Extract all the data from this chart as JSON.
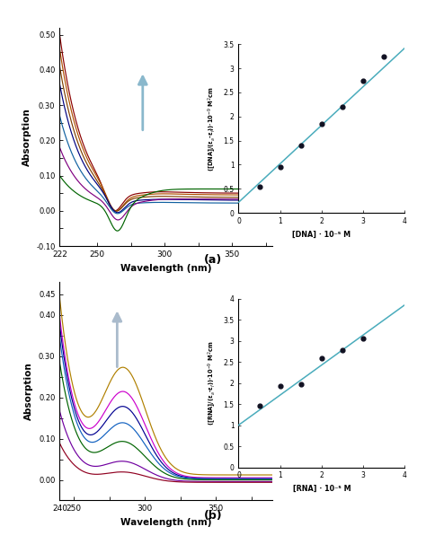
{
  "panel_a": {
    "xlim": [
      222,
      380
    ],
    "ylim": [
      -0.1,
      0.52
    ],
    "xlabel": "Wavelength (nm)",
    "ylabel": "Absorption",
    "curves": [
      {
        "color": "#8b0000",
        "peak_y": 0.5,
        "min_y": -0.005,
        "tail_y": 0.045,
        "min_x": 262
      },
      {
        "color": "#b05000",
        "peak_y": 0.46,
        "min_y": -0.005,
        "tail_y": 0.04,
        "min_x": 263
      },
      {
        "color": "#804000",
        "peak_y": 0.41,
        "min_y": -0.005,
        "tail_y": 0.033,
        "min_x": 263
      },
      {
        "color": "#000080",
        "peak_y": 0.36,
        "min_y": -0.008,
        "tail_y": 0.022,
        "min_x": 264
      },
      {
        "color": "#1060a0",
        "peak_y": 0.27,
        "min_y": -0.01,
        "tail_y": 0.012,
        "min_x": 264
      },
      {
        "color": "#800080",
        "peak_y": 0.18,
        "min_y": -0.03,
        "tail_y": 0.003,
        "min_x": 265
      },
      {
        "color": "#006400",
        "peak_y": 0.1,
        "min_y": -0.065,
        "tail_y": -0.003,
        "min_x": 265
      }
    ],
    "inset": {
      "xlim": [
        0,
        4
      ],
      "ylim": [
        0,
        3.5
      ],
      "xlabel": "[DNA] · 10⁻⁵ M",
      "ylabel_line1": "([DNA]/(εₐ - εₓ)) · 10⁻⁹ M²cm",
      "scatter_x": [
        0.5,
        1.0,
        1.5,
        2.0,
        2.5,
        3.0,
        3.5
      ],
      "scatter_y": [
        0.55,
        0.95,
        1.4,
        1.85,
        2.2,
        2.75,
        3.25
      ],
      "line_x0": 0,
      "line_x1": 4,
      "line_y0": 0.22,
      "line_y1": 3.42,
      "line_color": "#4aacbc"
    }
  },
  "panel_b": {
    "xlim": [
      240,
      390
    ],
    "ylim": [
      -0.05,
      0.48
    ],
    "xlabel": "Wavelength (nm)",
    "ylabel": "Absorption",
    "curves": [
      {
        "color": "#b08000",
        "peak_y": 0.45,
        "peak2_y": 0.3,
        "tail_y": 0.012
      },
      {
        "color": "#cc00cc",
        "peak_y": 0.41,
        "peak2_y": 0.24,
        "tail_y": 0.005
      },
      {
        "color": "#000090",
        "peak_y": 0.39,
        "peak2_y": 0.2,
        "tail_y": 0.003
      },
      {
        "color": "#1060c0",
        "peak_y": 0.36,
        "peak2_y": 0.155,
        "tail_y": 0.002
      },
      {
        "color": "#006400",
        "peak_y": 0.3,
        "peak2_y": 0.105,
        "tail_y": 0.0
      },
      {
        "color": "#7000a0",
        "peak_y": 0.18,
        "peak2_y": 0.055,
        "tail_y": -0.004
      },
      {
        "color": "#900020",
        "peak_y": 0.1,
        "peak2_y": 0.028,
        "tail_y": -0.006
      }
    ],
    "inset": {
      "xlim": [
        0,
        4
      ],
      "ylim": [
        0,
        4
      ],
      "xlabel": "[RNA] · 10⁻⁵ M",
      "ylabel_line1": "([RNA]/(εₐ - εₓ)) · 10⁻⁹ M²cm",
      "scatter_x": [
        0.5,
        1.0,
        1.5,
        2.0,
        2.5,
        3.0
      ],
      "scatter_y": [
        1.45,
        1.92,
        1.96,
        2.58,
        2.78,
        3.05
      ],
      "line_x0": 0,
      "line_x1": 4,
      "line_y0": 1.0,
      "line_y1": 3.85,
      "line_color": "#4aacbc"
    }
  },
  "background": "#ffffff",
  "arrow_color_a": "#8ab8cc",
  "arrow_color_b": "#aabbcc"
}
